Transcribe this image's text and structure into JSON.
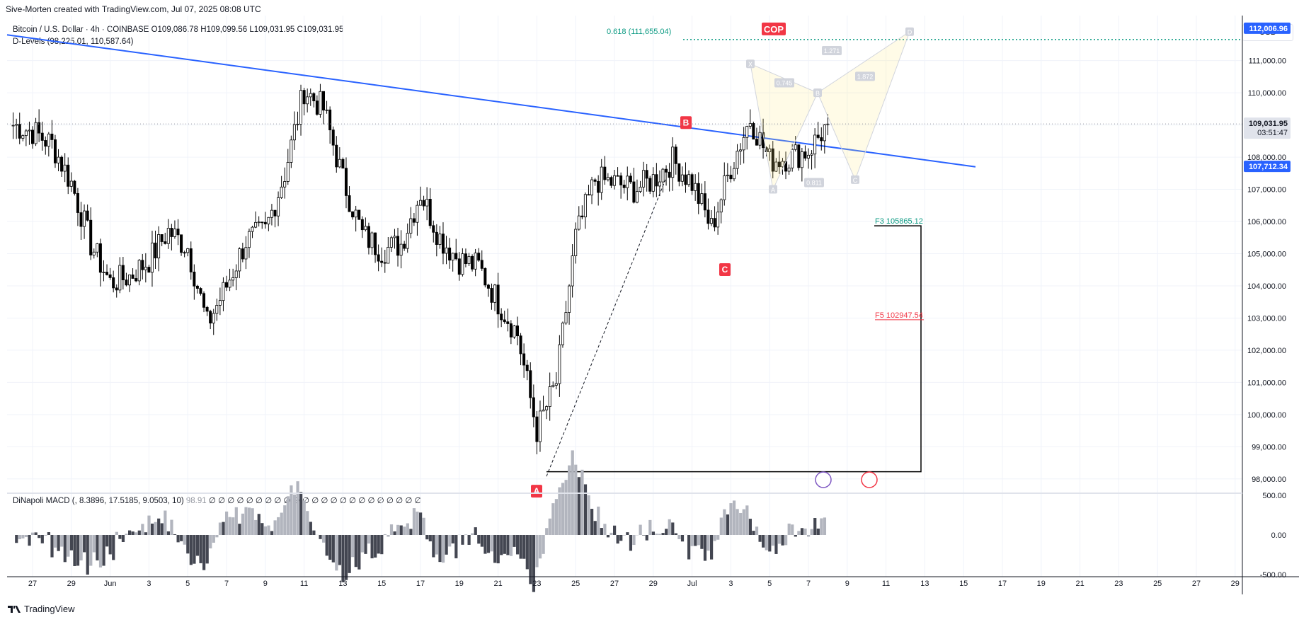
{
  "header": {
    "attribution": "Sive-Morten created with TradingView.com, Jul 07, 2025 08:08 UTC",
    "symbol": "Bitcoin / U.S. Dollar · 4h · COINBASE",
    "ohlc": {
      "o": "O109,086.78",
      "h": "H109,099.56",
      "l": "L109,031.95",
      "c": "C109,031.95"
    },
    "indicator": "D-Levels (98,225.01, 110,587.64)"
  },
  "currency": "USD",
  "brand": "TradingView",
  "colors": {
    "up": "#ffffff",
    "down": "#000000",
    "trendline": "#2962ff",
    "fib": "#089981",
    "label": "#f23645",
    "bull_hist": "#787b86"
  },
  "price_axis": {
    "ticks": [
      "98,000.00",
      "99,000.00",
      "100,000.00",
      "101,000.00",
      "102,000.00",
      "103,000.00",
      "104,000.00",
      "105,000.00",
      "106,000.00",
      "107,000.00",
      "108,000.00",
      "109,000.00",
      "110,000.00",
      "111,000.00"
    ],
    "tags": [
      {
        "text": "112,006.96",
        "bg": "#2962ff",
        "fg": "#ffffff"
      },
      {
        "text": "109,031.95",
        "sub": "03:51:47",
        "bg": "#e0e3eb",
        "fg": "#131722"
      },
      {
        "text": "107,712.34",
        "bg": "#2962ff",
        "fg": "#ffffff"
      }
    ]
  },
  "macd_axis": {
    "ticks": [
      "500.00",
      "0.00",
      "-500.00"
    ]
  },
  "time_axis": {
    "labels": [
      "27",
      "29",
      "Jun",
      "3",
      "5",
      "7",
      "9",
      "11",
      "13",
      "15",
      "17",
      "19",
      "21",
      "23",
      "25",
      "27",
      "29",
      "Jul",
      "3",
      "5",
      "7",
      "9",
      "11",
      "13",
      "15",
      "17",
      "19",
      "21",
      "23",
      "25",
      "27",
      "29"
    ]
  },
  "annotations": {
    "fib_label": "0.618 (111,655.04)",
    "cop_label": "COP",
    "labels_abc": [
      "A",
      "B",
      "C"
    ],
    "f3": "F3 105865.12",
    "f5": "F5 102947.54",
    "harmonic": {
      "x": "X",
      "a": "A",
      "b": "B",
      "c": "C",
      "d": "D",
      "r1": "0.745",
      "r2": "1.271",
      "r3": "1.872",
      "r4": "0.811"
    }
  },
  "macd": {
    "name": "DiNapoli MACD",
    "params": "(, 8.3896, 17.5185, 9.0503, 10)",
    "value": "98.91",
    "zeros": "∅ ∅ ∅ ∅ ∅ ∅ ∅ ∅ ∅ ∅ ∅ ∅ ∅ ∅ ∅ ∅ ∅ ∅ ∅ ∅ ∅ ∅ ∅"
  },
  "chart_data": {
    "type": "candlestick",
    "interval": "4h",
    "ylim": [
      97600,
      112400
    ],
    "anchors": [
      [
        "May 26",
        109000
      ],
      [
        "May 27",
        108800
      ],
      [
        "May 28",
        108400
      ],
      [
        "May 29",
        107200
      ],
      [
        "May 30",
        105300
      ],
      [
        "May 31",
        104100
      ],
      [
        "Jun 1",
        104300
      ],
      [
        "Jun 2",
        104800
      ],
      [
        "Jun 3",
        105700
      ],
      [
        "Jun 4",
        105200
      ],
      [
        "Jun 5",
        102800
      ],
      [
        "Jun 6",
        104000
      ],
      [
        "Jun 7",
        105400
      ],
      [
        "Jun 8",
        105700
      ],
      [
        "Jun 9",
        107500
      ],
      [
        "Jun 10",
        110100
      ],
      [
        "Jun 11",
        109500
      ],
      [
        "Jun 12",
        107300
      ],
      [
        "Jun 13",
        105600
      ],
      [
        "Jun 14",
        105100
      ],
      [
        "Jun 15",
        105300
      ],
      [
        "Jun 16",
        106900
      ],
      [
        "Jun 17",
        105500
      ],
      [
        "Jun 18",
        104800
      ],
      [
        "Jun 19",
        104600
      ],
      [
        "Jun 20",
        103500
      ],
      [
        "Jun 21",
        102500
      ],
      [
        "Jun 22",
        99500
      ],
      [
        "Jun 23",
        101000
      ],
      [
        "Jun 24",
        105500
      ],
      [
        "Jun 25",
        107300
      ],
      [
        "Jun 26",
        107200
      ],
      [
        "Jun 27",
        107000
      ],
      [
        "Jun 28",
        107300
      ],
      [
        "Jun 29",
        107900
      ],
      [
        "Jun 30",
        107200
      ],
      [
        "Jul 1",
        105800
      ],
      [
        "Jul 2",
        107700
      ],
      [
        "Jul 3",
        109200
      ],
      [
        "Jul 4",
        107900
      ],
      [
        "Jul 5",
        108000
      ],
      [
        "Jul 6",
        108200
      ],
      [
        "Jul 7",
        109030
      ]
    ],
    "macd_histogram_range": [
      -500,
      500
    ],
    "last_close": 109031.95
  }
}
